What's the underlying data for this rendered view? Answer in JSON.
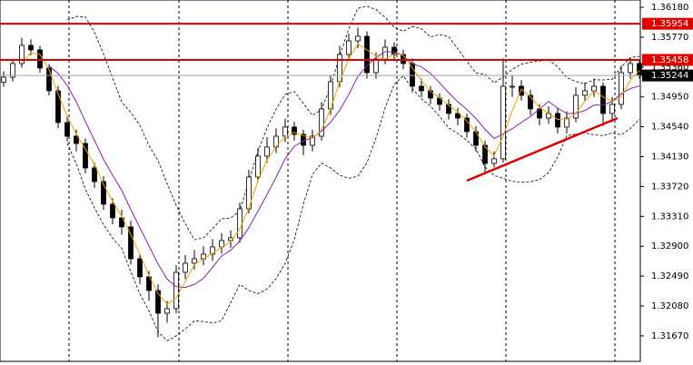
{
  "chart_data": {
    "type": "candlestick",
    "opens": [
      1.3515,
      1.35221,
      1.35408,
      1.35657,
      1.35595,
      1.35346,
      1.35034,
      1.34598,
      1.34411,
      1.34311,
      1.33975,
      1.33788,
      1.33477,
      1.3329,
      1.33165,
      1.32729,
      1.3248,
      1.32293,
      1.31981,
      1.32044,
      1.32542,
      1.32667,
      1.32729,
      1.32791,
      1.32891,
      1.32978,
      1.33016,
      1.33414,
      1.3385,
      1.34137,
      1.34262,
      1.34411,
      1.34536,
      1.34436,
      1.34286,
      1.34411,
      1.34785,
      1.35159,
      1.35532,
      1.35719,
      1.35782,
      1.35283,
      1.3547,
      1.35632,
      1.35532,
      1.35408,
      1.35096,
      1.35034,
      1.34934,
      1.34847,
      1.34723,
      1.3466,
      1.34473,
      1.34286,
      1.34037,
      1.341,
      1.35096,
      1.35096,
      1.34972,
      1.34785,
      1.3466,
      1.34723,
      1.34536,
      1.3466,
      1.34972,
      1.35034,
      1.35096,
      1.34723,
      1.34847,
      1.35283,
      1.35408
    ],
    "highs": [
      1.353,
      1.3547,
      1.3576,
      1.3574,
      1.3565,
      1.354,
      1.351,
      1.3468,
      1.345,
      1.3438,
      1.3405,
      1.3386,
      1.3356,
      1.334,
      1.3325,
      1.328,
      1.3256,
      1.3238,
      1.3215,
      1.3264,
      1.3278,
      1.3285,
      1.329,
      1.33,
      1.3308,
      1.3312,
      1.335,
      1.3395,
      1.3425,
      1.344,
      1.3452,
      1.3465,
      1.3461,
      1.345,
      1.345,
      1.3488,
      1.3525,
      1.3565,
      1.3582,
      1.359,
      1.3585,
      1.3556,
      1.3574,
      1.357,
      1.356,
      1.3548,
      1.352,
      1.351,
      1.35,
      1.3492,
      1.348,
      1.3472,
      1.3455,
      1.3435,
      1.342,
      1.3548,
      1.3525,
      1.3518,
      1.3505,
      1.3485,
      1.3482,
      1.348,
      1.3475,
      1.3508,
      1.3515,
      1.352,
      1.3515,
      1.3495,
      1.3538,
      1.3548,
      1.3546
    ],
    "lows": [
      1.3509,
      1.3516,
      1.3535,
      1.3552,
      1.3528,
      1.3497,
      1.3452,
      1.3434,
      1.342,
      1.339,
      1.337,
      1.334,
      1.332,
      1.3306,
      1.3265,
      1.3238,
      1.3215,
      1.3165,
      1.3185,
      1.3198,
      1.3245,
      1.3258,
      1.3264,
      1.327,
      1.328,
      1.3288,
      1.3295,
      1.3335,
      1.3378,
      1.3405,
      1.3418,
      1.3433,
      1.3435,
      1.3415,
      1.342,
      1.3435,
      1.347,
      1.3508,
      1.3545,
      1.3562,
      1.352,
      1.352,
      1.354,
      1.3546,
      1.3533,
      1.3501,
      1.3495,
      1.3485,
      1.3476,
      1.3464,
      1.3456,
      1.3439,
      1.342,
      1.339,
      1.3398,
      1.3405,
      1.3495,
      1.349,
      1.347,
      1.3456,
      1.3458,
      1.3445,
      1.3445,
      1.346,
      1.349,
      1.3495,
      1.3455,
      1.346,
      1.3478,
      1.352,
      1.352
    ],
    "closes": [
      1.35221,
      1.35408,
      1.35657,
      1.35595,
      1.35346,
      1.35034,
      1.34598,
      1.34411,
      1.34311,
      1.33975,
      1.33788,
      1.33477,
      1.3329,
      1.33165,
      1.32729,
      1.3248,
      1.32293,
      1.31981,
      1.32044,
      1.32542,
      1.32667,
      1.32729,
      1.32791,
      1.32891,
      1.32978,
      1.33016,
      1.33414,
      1.3385,
      1.34137,
      1.34262,
      1.34411,
      1.34536,
      1.34436,
      1.34286,
      1.34411,
      1.34785,
      1.35159,
      1.35532,
      1.35719,
      1.35782,
      1.35283,
      1.3547,
      1.35632,
      1.35532,
      1.35408,
      1.35096,
      1.35034,
      1.34934,
      1.34847,
      1.34723,
      1.3466,
      1.34473,
      1.34286,
      1.34037,
      1.341,
      1.35096,
      1.35096,
      1.34972,
      1.34785,
      1.3466,
      1.34723,
      1.34536,
      1.3466,
      1.34972,
      1.35034,
      1.35096,
      1.34723,
      1.34847,
      1.35283,
      1.35408,
      1.35244
    ],
    "ylim": [
      1.3132,
      1.3628
    ],
    "yticks": [
      {
        "value": 1.3618,
        "label": "1.36180"
      },
      {
        "value": 1.3577,
        "label": "1.35770"
      },
      {
        "value": 1.3536,
        "label": "1.35360"
      },
      {
        "value": 1.3495,
        "label": "1.34950"
      },
      {
        "value": 1.3454,
        "label": "1.34540"
      },
      {
        "value": 1.3413,
        "label": "1.34130"
      },
      {
        "value": 1.3372,
        "label": "1.33720"
      },
      {
        "value": 1.3331,
        "label": "1.33310"
      },
      {
        "value": 1.329,
        "label": "1.32900"
      },
      {
        "value": 1.3249,
        "label": "1.32490"
      },
      {
        "value": 1.3208,
        "label": "1.32080"
      },
      {
        "value": 1.3167,
        "label": "1.31670"
      }
    ],
    "levels": [
      {
        "value": 1.35954,
        "color": "#e00000"
      },
      {
        "value": 1.35458,
        "color": "#e00000"
      },
      {
        "value": 1.35244,
        "color": "#000000"
      }
    ],
    "trendline": {
      "x": [
        51,
        67.6
      ],
      "values": [
        1.338,
        1.3466
      ],
      "color": "#e00000"
    }
  }
}
